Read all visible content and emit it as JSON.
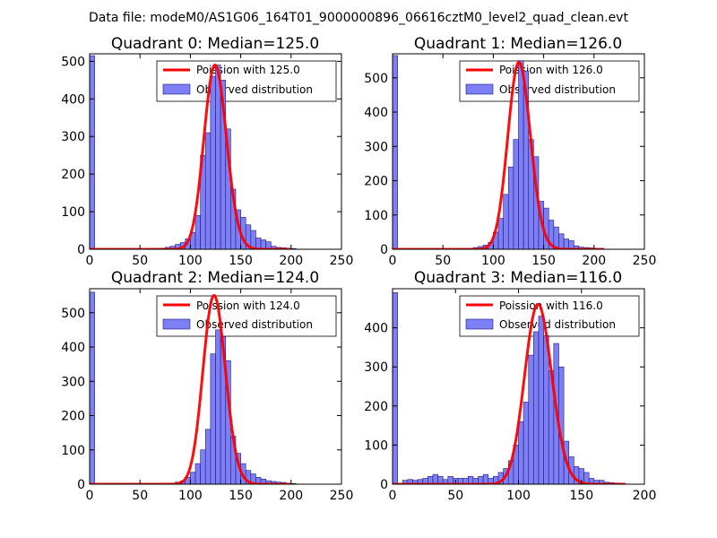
{
  "suptitle": "Data file: modeM0/AS1G06_164T01_9000000896_06616cztM0_level2_quad_clean.evt",
  "colors": {
    "bar_fill": "#7f7ff5",
    "bar_edge": "#1a1a80",
    "curve": "#ff0000"
  },
  "chart_data": [
    {
      "type": "bar",
      "title": "Quadrant 0: Median=125.0",
      "xlim": [
        0,
        250
      ],
      "ylim": [
        0,
        520
      ],
      "xticks": [
        0,
        50,
        100,
        150,
        200,
        250
      ],
      "yticks": [
        0,
        100,
        200,
        300,
        400,
        500
      ],
      "bin_width": 5,
      "bins": [
        [
          0,
          515
        ],
        [
          70,
          3
        ],
        [
          75,
          5
        ],
        [
          80,
          8
        ],
        [
          85,
          13
        ],
        [
          90,
          18
        ],
        [
          95,
          28
        ],
        [
          100,
          45
        ],
        [
          105,
          90
        ],
        [
          110,
          250
        ],
        [
          115,
          310
        ],
        [
          120,
          460
        ],
        [
          125,
          490
        ],
        [
          130,
          450
        ],
        [
          135,
          320
        ],
        [
          140,
          160
        ],
        [
          145,
          105
        ],
        [
          150,
          85
        ],
        [
          155,
          65
        ],
        [
          160,
          50
        ],
        [
          165,
          30
        ],
        [
          170,
          25
        ],
        [
          175,
          20
        ],
        [
          180,
          8
        ],
        [
          185,
          5
        ],
        [
          190,
          4
        ],
        [
          195,
          3
        ],
        [
          200,
          2
        ]
      ],
      "poisson_median": 125,
      "poisson_peak": 490,
      "poisson_xrange": [
        0,
        200
      ],
      "legend": [
        "Poission with 125.0",
        "Observed distribution"
      ]
    },
    {
      "type": "bar",
      "title": "Quadrant 1: Median=126.0",
      "xlim": [
        0,
        250
      ],
      "ylim": [
        0,
        570
      ],
      "xticks": [
        0,
        50,
        100,
        150,
        200,
        250
      ],
      "yticks": [
        0,
        100,
        200,
        300,
        400,
        500
      ],
      "bin_width": 5,
      "bins": [
        [
          0,
          565
        ],
        [
          75,
          3
        ],
        [
          80,
          5
        ],
        [
          85,
          8
        ],
        [
          90,
          12
        ],
        [
          95,
          20
        ],
        [
          100,
          50
        ],
        [
          105,
          90
        ],
        [
          110,
          160
        ],
        [
          115,
          240
        ],
        [
          120,
          320
        ],
        [
          125,
          550
        ],
        [
          130,
          520
        ],
        [
          135,
          320
        ],
        [
          140,
          270
        ],
        [
          145,
          140
        ],
        [
          150,
          120
        ],
        [
          155,
          85
        ],
        [
          160,
          65
        ],
        [
          165,
          45
        ],
        [
          170,
          30
        ],
        [
          175,
          25
        ],
        [
          180,
          10
        ],
        [
          185,
          6
        ],
        [
          190,
          5
        ],
        [
          195,
          4
        ],
        [
          200,
          3
        ],
        [
          205,
          2
        ]
      ],
      "poisson_median": 126,
      "poisson_peak": 545,
      "poisson_xrange": [
        0,
        210
      ],
      "legend": [
        "Poission with 126.0",
        "Observed distribution"
      ]
    },
    {
      "type": "bar",
      "title": "Quadrant 2: Median=124.0",
      "xlim": [
        0,
        250
      ],
      "ylim": [
        0,
        570
      ],
      "xticks": [
        0,
        50,
        100,
        150,
        200,
        250
      ],
      "yticks": [
        0,
        100,
        200,
        300,
        400,
        500
      ],
      "bin_width": 5,
      "bins": [
        [
          0,
          560
        ],
        [
          80,
          3
        ],
        [
          85,
          6
        ],
        [
          90,
          10
        ],
        [
          95,
          20
        ],
        [
          100,
          35
        ],
        [
          105,
          60
        ],
        [
          110,
          100
        ],
        [
          115,
          160
        ],
        [
          120,
          380
        ],
        [
          125,
          450
        ],
        [
          130,
          430
        ],
        [
          135,
          360
        ],
        [
          140,
          140
        ],
        [
          145,
          90
        ],
        [
          150,
          60
        ],
        [
          155,
          40
        ],
        [
          160,
          30
        ],
        [
          165,
          20
        ],
        [
          170,
          15
        ],
        [
          175,
          10
        ],
        [
          180,
          8
        ],
        [
          185,
          6
        ],
        [
          190,
          5
        ],
        [
          195,
          3
        ],
        [
          200,
          2
        ]
      ],
      "poisson_median": 124,
      "poisson_peak": 550,
      "poisson_xrange": [
        0,
        200
      ],
      "legend": [
        "Poission with 124.0",
        "Observed distribution"
      ]
    },
    {
      "type": "bar",
      "title": "Quadrant 3: Median=116.0",
      "xlim": [
        0,
        200
      ],
      "ylim": [
        0,
        500
      ],
      "xticks": [
        0,
        50,
        100,
        150,
        200
      ],
      "yticks": [
        0,
        100,
        200,
        300,
        400
      ],
      "bin_width": 4,
      "bins": [
        [
          0,
          490
        ],
        [
          8,
          10
        ],
        [
          12,
          12
        ],
        [
          16,
          10
        ],
        [
          20,
          12
        ],
        [
          24,
          15
        ],
        [
          28,
          20
        ],
        [
          32,
          25
        ],
        [
          36,
          20
        ],
        [
          40,
          12
        ],
        [
          44,
          20
        ],
        [
          48,
          15
        ],
        [
          52,
          15
        ],
        [
          56,
          15
        ],
        [
          60,
          20
        ],
        [
          64,
          15
        ],
        [
          68,
          20
        ],
        [
          72,
          25
        ],
        [
          76,
          15
        ],
        [
          80,
          20
        ],
        [
          84,
          30
        ],
        [
          88,
          40
        ],
        [
          92,
          60
        ],
        [
          96,
          100
        ],
        [
          100,
          160
        ],
        [
          104,
          210
        ],
        [
          108,
          330
        ],
        [
          112,
          390
        ],
        [
          116,
          430
        ],
        [
          120,
          380
        ],
        [
          124,
          290
        ],
        [
          128,
          360
        ],
        [
          132,
          300
        ],
        [
          136,
          110
        ],
        [
          140,
          70
        ],
        [
          144,
          45
        ],
        [
          148,
          40
        ],
        [
          152,
          30
        ],
        [
          156,
          15
        ],
        [
          160,
          10
        ],
        [
          164,
          10
        ],
        [
          168,
          5
        ],
        [
          172,
          4
        ],
        [
          176,
          3
        ],
        [
          180,
          2
        ]
      ],
      "poisson_median": 116,
      "poisson_peak": 460,
      "poisson_xrange": [
        0,
        185
      ],
      "legend": [
        "Poission with 116.0",
        "Observed distribution"
      ]
    }
  ]
}
